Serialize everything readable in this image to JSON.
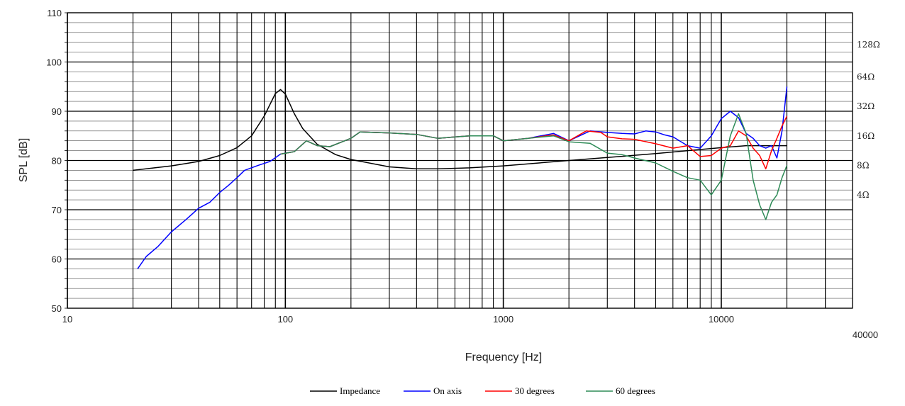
{
  "chart_data": {
    "type": "line",
    "xlabel": "Frequency [Hz]",
    "ylabel": "SPL [dB]",
    "x_scale": "log",
    "xlim": [
      10,
      40000
    ],
    "ylim": [
      50,
      110
    ],
    "x_ticks": [
      "10",
      "100",
      "1000",
      "10000",
      "40000"
    ],
    "y_ticks": [
      "50",
      "60",
      "70",
      "80",
      "90",
      "100",
      "110"
    ],
    "right_axis": {
      "labels": [
        {
          "text": "128Ω",
          "y": 103.5
        },
        {
          "text": "64Ω",
          "y": 97
        },
        {
          "text": "32Ω",
          "y": 91
        },
        {
          "text": "16Ω",
          "y": 85
        },
        {
          "text": "8Ω",
          "y": 79
        },
        {
          "text": "4Ω",
          "y": 73
        }
      ]
    },
    "grid": true,
    "legend_position": "bottom-center",
    "series": [
      {
        "name": "Impedance",
        "color": "#000000",
        "points": [
          [
            20,
            78
          ],
          [
            30,
            78.9
          ],
          [
            40,
            79.8
          ],
          [
            50,
            81
          ],
          [
            60,
            82.6
          ],
          [
            70,
            85
          ],
          [
            80,
            89
          ],
          [
            90,
            93.6
          ],
          [
            95,
            94.4
          ],
          [
            100,
            93.5
          ],
          [
            110,
            89.5
          ],
          [
            120,
            86.5
          ],
          [
            140,
            83.3
          ],
          [
            170,
            81.2
          ],
          [
            200,
            80.2
          ],
          [
            300,
            78.7
          ],
          [
            400,
            78.3
          ],
          [
            500,
            78.3
          ],
          [
            700,
            78.5
          ],
          [
            1000,
            78.9
          ],
          [
            2000,
            80
          ],
          [
            3000,
            80.6
          ],
          [
            5000,
            81.4
          ],
          [
            7000,
            82
          ],
          [
            10000,
            82.6
          ],
          [
            13000,
            83
          ],
          [
            20000,
            83
          ]
        ]
      },
      {
        "name": "On axis",
        "color": "#0000ff",
        "points": [
          [
            21,
            58
          ],
          [
            23,
            60.5
          ],
          [
            26,
            62.5
          ],
          [
            30,
            65.5
          ],
          [
            35,
            68
          ],
          [
            40,
            70.3
          ],
          [
            45,
            71.5
          ],
          [
            50,
            73.5
          ],
          [
            55,
            75
          ],
          [
            60,
            76.5
          ],
          [
            65,
            78
          ],
          [
            75,
            79
          ],
          [
            85,
            79.8
          ],
          [
            95,
            81.3
          ],
          [
            100,
            81.5
          ],
          [
            110,
            81.8
          ],
          [
            125,
            84
          ],
          [
            140,
            83
          ],
          [
            160,
            82.8
          ],
          [
            200,
            84.5
          ],
          [
            220,
            85.8
          ],
          [
            300,
            85.6
          ],
          [
            400,
            85.3
          ],
          [
            500,
            84.5
          ],
          [
            700,
            85
          ],
          [
            900,
            85
          ],
          [
            1000,
            84
          ],
          [
            1300,
            84.5
          ],
          [
            1700,
            85.5
          ],
          [
            2000,
            84
          ],
          [
            2500,
            86
          ],
          [
            3000,
            85.7
          ],
          [
            3500,
            85.5
          ],
          [
            4000,
            85.4
          ],
          [
            4500,
            86
          ],
          [
            5000,
            85.8
          ],
          [
            5500,
            85.2
          ],
          [
            6000,
            84.8
          ],
          [
            7000,
            83
          ],
          [
            8000,
            82.5
          ],
          [
            9000,
            85
          ],
          [
            10000,
            88.5
          ],
          [
            11000,
            90
          ],
          [
            12000,
            88.7
          ],
          [
            13000,
            85.5
          ],
          [
            14000,
            84.5
          ],
          [
            15000,
            83
          ],
          [
            16000,
            82.5
          ],
          [
            17000,
            83
          ],
          [
            18000,
            80.5
          ],
          [
            19000,
            86
          ],
          [
            20000,
            95
          ]
        ]
      },
      {
        "name": "30 degrees",
        "color": "#ff0000",
        "points": [
          [
            95,
            81.3
          ],
          [
            110,
            81.8
          ],
          [
            125,
            84
          ],
          [
            140,
            83
          ],
          [
            160,
            82.8
          ],
          [
            200,
            84.5
          ],
          [
            220,
            85.8
          ],
          [
            300,
            85.6
          ],
          [
            400,
            85.3
          ],
          [
            500,
            84.5
          ],
          [
            700,
            85
          ],
          [
            900,
            85
          ],
          [
            1000,
            84
          ],
          [
            1300,
            84.5
          ],
          [
            1700,
            85.2
          ],
          [
            2000,
            84
          ],
          [
            2400,
            86
          ],
          [
            2800,
            85.7
          ],
          [
            3000,
            84.8
          ],
          [
            3500,
            84.4
          ],
          [
            4000,
            84.3
          ],
          [
            5000,
            83.4
          ],
          [
            6000,
            82.5
          ],
          [
            7000,
            83
          ],
          [
            8000,
            80.8
          ],
          [
            9000,
            81
          ],
          [
            10000,
            82.5
          ],
          [
            11000,
            83
          ],
          [
            12000,
            86
          ],
          [
            13000,
            85
          ],
          [
            14000,
            82.5
          ],
          [
            15000,
            81
          ],
          [
            16000,
            78.3
          ],
          [
            17000,
            82
          ],
          [
            18000,
            84.5
          ],
          [
            19000,
            87
          ],
          [
            20000,
            89
          ]
        ]
      },
      {
        "name": "60 degrees",
        "color": "#2e8b57",
        "points": [
          [
            95,
            81.3
          ],
          [
            110,
            81.8
          ],
          [
            125,
            84
          ],
          [
            140,
            83
          ],
          [
            160,
            82.8
          ],
          [
            200,
            84.5
          ],
          [
            220,
            85.8
          ],
          [
            300,
            85.6
          ],
          [
            400,
            85.3
          ],
          [
            500,
            84.5
          ],
          [
            700,
            85
          ],
          [
            900,
            85
          ],
          [
            1000,
            84
          ],
          [
            1300,
            84.5
          ],
          [
            1700,
            85
          ],
          [
            2000,
            83.8
          ],
          [
            2500,
            83.5
          ],
          [
            3000,
            81.5
          ],
          [
            3500,
            81.2
          ],
          [
            4000,
            80.5
          ],
          [
            5000,
            79.5
          ],
          [
            6000,
            77.8
          ],
          [
            7000,
            76.5
          ],
          [
            8000,
            76
          ],
          [
            9000,
            73
          ],
          [
            10000,
            76
          ],
          [
            11000,
            85
          ],
          [
            12000,
            89.5
          ],
          [
            13000,
            85.5
          ],
          [
            14000,
            76
          ],
          [
            15000,
            71
          ],
          [
            16000,
            68
          ],
          [
            17000,
            71.5
          ],
          [
            18000,
            73
          ],
          [
            19000,
            76.5
          ],
          [
            20000,
            79
          ]
        ]
      }
    ]
  }
}
